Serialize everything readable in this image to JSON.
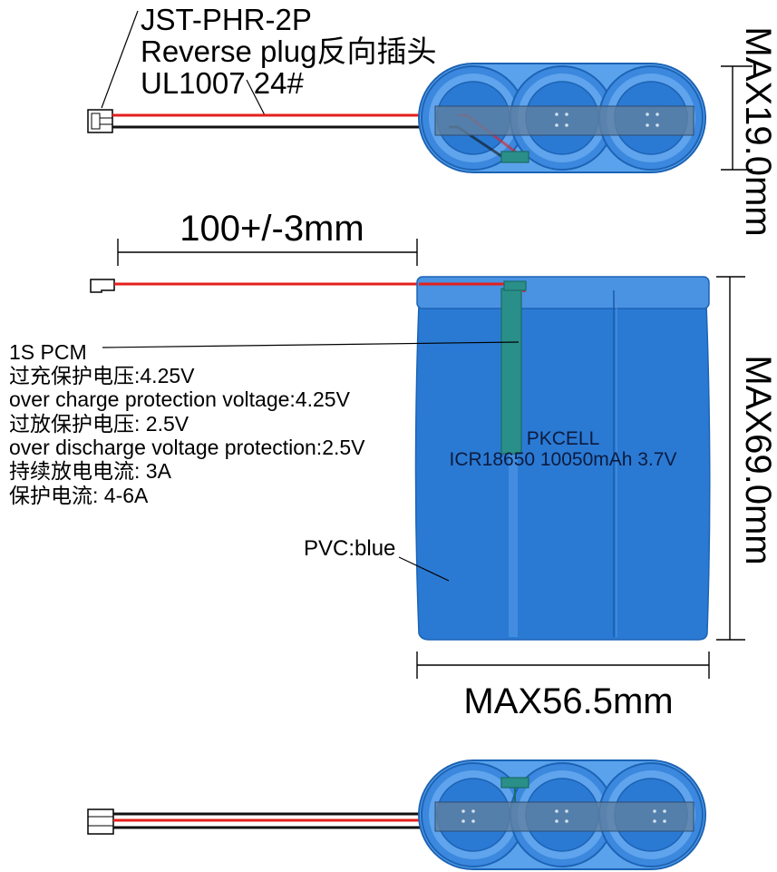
{
  "labels": {
    "connector": "JST-PHR-2P",
    "plug": "Reverse plug反向插头",
    "wire": "UL1007  24#",
    "pcm": "1S PCM",
    "specs": [
      "过充保护电压:4.25V",
      "over charge protection voltage:4.25V",
      "过放保护电压: 2.5V",
      "over discharge voltage protection:2.5V",
      "持续放电电流: 3A",
      "保护电流: 4-6A"
    ],
    "brand": "PKCELL",
    "model": "ICR18650 10050mAh 3.7V",
    "pvc": "PVC:blue"
  },
  "dimensions": {
    "thickness": "MAX19.0mm",
    "wire_length": "100+/-3mm",
    "height": "MAX69.0mm",
    "width": "MAX56.5mm"
  },
  "colors": {
    "pack": "#2a7ad4",
    "light": "#5aa3ec",
    "edge": "#1c63b5",
    "strip": "#62809f",
    "pcb": "#2a8f88",
    "red": "#e3201c",
    "black": "#111111",
    "label": "#0d1b3e"
  }
}
